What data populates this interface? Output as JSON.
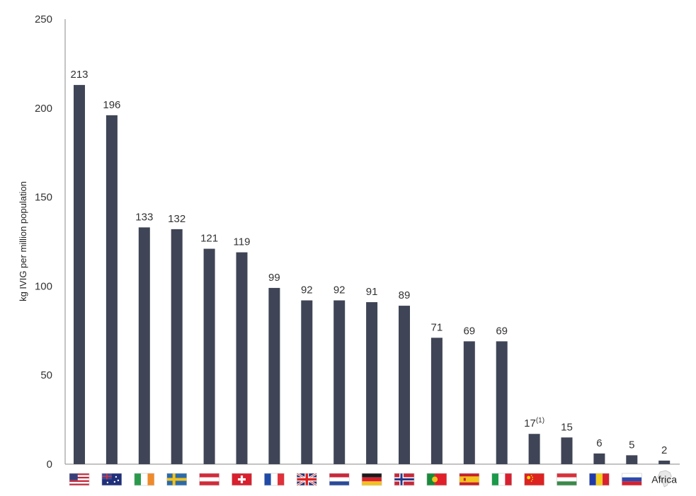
{
  "chart_data": {
    "type": "bar",
    "title": "",
    "xlabel": "",
    "ylabel": "kg IVIG per million population",
    "ylim": [
      0,
      250
    ],
    "yticks": [
      0,
      50,
      100,
      150,
      200,
      250
    ],
    "grid": false,
    "bar_color": "#3f4556",
    "categories": [
      {
        "flag": "usa-flag-icon"
      },
      {
        "flag": "australia-flag-icon"
      },
      {
        "flag": "ireland-flag-icon"
      },
      {
        "flag": "sweden-flag-icon"
      },
      {
        "flag": "austria-flag-icon"
      },
      {
        "flag": "switzerland-flag-icon"
      },
      {
        "flag": "france-flag-icon"
      },
      {
        "flag": "uk-flag-icon"
      },
      {
        "flag": "netherlands-flag-icon"
      },
      {
        "flag": "germany-flag-icon"
      },
      {
        "flag": "norway-flag-icon"
      },
      {
        "flag": "portugal-flag-icon"
      },
      {
        "flag": "spain-flag-icon"
      },
      {
        "flag": "italy-flag-icon"
      },
      {
        "flag": "china-flag-icon"
      },
      {
        "flag": "hungary-flag-icon"
      },
      {
        "flag": "romania-flag-icon"
      },
      {
        "flag": "russia-flag-icon"
      },
      {
        "label": "Africa",
        "flag": "africa-map-icon"
      }
    ],
    "values": [
      213,
      196,
      133,
      132,
      121,
      119,
      99,
      92,
      92,
      91,
      89,
      71,
      69,
      69,
      17,
      15,
      6,
      5,
      2
    ],
    "value_labels": [
      "213",
      "196",
      "133",
      "132",
      "121",
      "119",
      "99",
      "92",
      "92",
      "91",
      "89",
      "71",
      "69",
      "69",
      "17",
      "15",
      "6",
      "5",
      "2"
    ],
    "footnote_marks": {
      "14": "(1)"
    }
  }
}
